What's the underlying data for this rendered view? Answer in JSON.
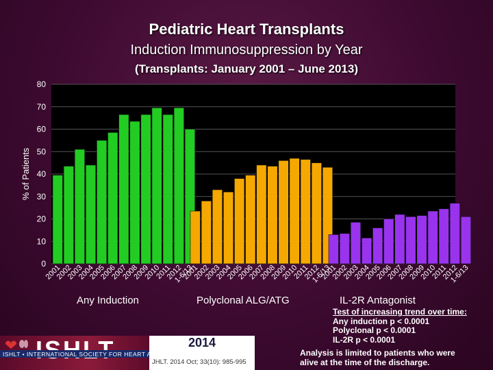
{
  "title": "Pediatric Heart Transplants",
  "subtitle": "Induction Immunosuppression by Year",
  "period": "(Transplants: January 2001 – June 2013)",
  "chart_data": {
    "type": "bar",
    "ylabel": "% of Patients",
    "ylim": [
      0,
      80
    ],
    "yticks": [
      0,
      10,
      20,
      30,
      40,
      50,
      60,
      70,
      80
    ],
    "categories": [
      "2001",
      "2002",
      "2003",
      "2004",
      "2005",
      "2006",
      "2007",
      "2008",
      "2009",
      "2010",
      "2011",
      "2012",
      "1/2013-6/2013"
    ],
    "category_label_rendering": [
      "2001",
      "2002",
      "2003",
      "2004",
      "2005",
      "2006",
      "2007",
      "2008",
      "2009",
      "2010",
      "2011",
      "2012",
      "1-6/13"
    ],
    "series": [
      {
        "name": "Any Induction",
        "color": "#22cc22",
        "values": [
          39.5,
          43.5,
          51,
          44,
          55,
          58.5,
          66.5,
          63.5,
          66.5,
          69.5,
          66.5,
          69.5,
          60
        ]
      },
      {
        "name": "Polyclonal ALG/ATG",
        "color": "#f5a800",
        "values": [
          23.5,
          28,
          33,
          32,
          38,
          39.5,
          44,
          43.5,
          46,
          47,
          46.5,
          45,
          43
        ]
      },
      {
        "name": "IL-2R Antagonist",
        "color": "#9933ee",
        "values": [
          13,
          13.5,
          18.5,
          11.5,
          16,
          20,
          22,
          21,
          21.5,
          23.5,
          24.5,
          27,
          21
        ]
      }
    ]
  },
  "notes": {
    "header": "Test of increasing trend over time:",
    "lines": [
      "Any induction p < 0.0001",
      "Polyclonal p < 0.0001",
      "IL-2R p < 0.0001"
    ]
  },
  "footnote": [
    "Analysis is limited to patients who were",
    "alive at the time of the discharge."
  ],
  "logo": {
    "name": "ISHLT",
    "tagline": "ISHLT • INTERNATIONAL SOCIETY FOR HEART AND LUNG TRANSPLANTATION",
    "year": "2014",
    "citation": "JHLT. 2014 Oct; 33(10): 985-995"
  }
}
